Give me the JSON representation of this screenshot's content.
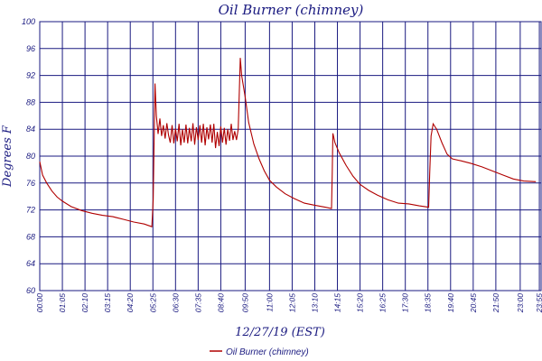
{
  "chart_data": {
    "type": "line",
    "title": "Oil Burner (chimney)",
    "xlabel": "12/27/19 (EST)",
    "ylabel": "Degrees F",
    "ylim": [
      60,
      100
    ],
    "y_ticks": [
      "60",
      "64",
      "68",
      "72",
      "76",
      "80",
      "84",
      "88",
      "92",
      "96",
      "100"
    ],
    "x_ticks": [
      "00:00",
      "01:05",
      "02:10",
      "03:15",
      "04:20",
      "05:25",
      "06:30",
      "07:35",
      "08:40",
      "09:50",
      "11:00",
      "12:05",
      "13:10",
      "14:15",
      "15:20",
      "16:25",
      "17:30",
      "18:35",
      "19:40",
      "20:45",
      "21:50",
      "23:00",
      "23:55"
    ],
    "grid": true,
    "legend_position": "bottom-center",
    "series": [
      {
        "name": "Oil Burner (chimney)",
        "color": "#b00000",
        "points": [
          [
            "00:00",
            79.2
          ],
          [
            "00:08",
            77.2
          ],
          [
            "00:20",
            76.0
          ],
          [
            "00:35",
            74.8
          ],
          [
            "00:50",
            73.9
          ],
          [
            "01:05",
            73.3
          ],
          [
            "01:30",
            72.5
          ],
          [
            "02:00",
            71.9
          ],
          [
            "02:30",
            71.5
          ],
          [
            "03:00",
            71.2
          ],
          [
            "03:30",
            71.0
          ],
          [
            "04:00",
            70.6
          ],
          [
            "04:30",
            70.2
          ],
          [
            "05:00",
            69.9
          ],
          [
            "05:22",
            69.5
          ],
          [
            "05:26",
            73.5
          ],
          [
            "05:29",
            84.0
          ],
          [
            "05:31",
            90.8
          ],
          [
            "05:35",
            86.0
          ],
          [
            "05:40",
            83.3
          ],
          [
            "05:45",
            85.6
          ],
          [
            "05:50",
            83.0
          ],
          [
            "05:55",
            84.6
          ],
          [
            "06:00",
            82.6
          ],
          [
            "06:05",
            84.9
          ],
          [
            "06:10",
            83.1
          ],
          [
            "06:15",
            82.0
          ],
          [
            "06:20",
            84.6
          ],
          [
            "06:25",
            81.9
          ],
          [
            "06:30",
            84.1
          ],
          [
            "06:35",
            82.2
          ],
          [
            "06:40",
            84.8
          ],
          [
            "06:45",
            81.6
          ],
          [
            "06:50",
            84.0
          ],
          [
            "06:55",
            82.0
          ],
          [
            "07:00",
            84.7
          ],
          [
            "07:05",
            81.9
          ],
          [
            "07:10",
            84.2
          ],
          [
            "07:15",
            82.2
          ],
          [
            "07:20",
            84.9
          ],
          [
            "07:25",
            81.7
          ],
          [
            "07:30",
            84.3
          ],
          [
            "07:35",
            82.4
          ],
          [
            "07:40",
            84.6
          ],
          [
            "07:45",
            82.0
          ],
          [
            "07:50",
            84.8
          ],
          [
            "07:55",
            81.6
          ],
          [
            "08:00",
            84.3
          ],
          [
            "08:05",
            82.5
          ],
          [
            "08:10",
            84.7
          ],
          [
            "08:15",
            82.0
          ],
          [
            "08:20",
            84.8
          ],
          [
            "08:25",
            81.2
          ],
          [
            "08:30",
            83.6
          ],
          [
            "08:35",
            81.5
          ],
          [
            "08:40",
            84.4
          ],
          [
            "08:45",
            82.0
          ],
          [
            "08:50",
            84.2
          ],
          [
            "08:55",
            81.7
          ],
          [
            "09:00",
            84.0
          ],
          [
            "09:05",
            82.3
          ],
          [
            "09:10",
            84.8
          ],
          [
            "09:15",
            82.4
          ],
          [
            "09:20",
            83.7
          ],
          [
            "09:25",
            82.4
          ],
          [
            "09:30",
            84.0
          ],
          [
            "09:33",
            89.0
          ],
          [
            "09:36",
            94.6
          ],
          [
            "09:40",
            92.0
          ],
          [
            "09:50",
            88.8
          ],
          [
            "10:00",
            85.0
          ],
          [
            "10:15",
            81.8
          ],
          [
            "10:30",
            79.6
          ],
          [
            "10:45",
            77.8
          ],
          [
            "11:00",
            76.4
          ],
          [
            "11:20",
            75.4
          ],
          [
            "11:45",
            74.4
          ],
          [
            "12:10",
            73.7
          ],
          [
            "12:40",
            73.0
          ],
          [
            "13:10",
            72.7
          ],
          [
            "13:40",
            72.4
          ],
          [
            "13:58",
            72.2
          ],
          [
            "14:00",
            77.5
          ],
          [
            "14:02",
            83.4
          ],
          [
            "14:08",
            82.0
          ],
          [
            "14:20",
            80.5
          ],
          [
            "14:40",
            78.6
          ],
          [
            "15:00",
            77.0
          ],
          [
            "15:20",
            75.8
          ],
          [
            "15:45",
            74.9
          ],
          [
            "16:10",
            74.2
          ],
          [
            "16:40",
            73.5
          ],
          [
            "17:10",
            73.0
          ],
          [
            "17:40",
            72.9
          ],
          [
            "18:10",
            72.6
          ],
          [
            "18:37",
            72.4
          ],
          [
            "18:40",
            77.5
          ],
          [
            "18:44",
            83.0
          ],
          [
            "18:50",
            84.8
          ],
          [
            "19:00",
            84.0
          ],
          [
            "19:15",
            82.0
          ],
          [
            "19:30",
            80.3
          ],
          [
            "19:45",
            79.6
          ],
          [
            "20:10",
            79.3
          ],
          [
            "20:40",
            78.9
          ],
          [
            "21:10",
            78.4
          ],
          [
            "21:40",
            77.8
          ],
          [
            "22:10",
            77.2
          ],
          [
            "22:40",
            76.6
          ],
          [
            "23:10",
            76.3
          ],
          [
            "23:45",
            76.2
          ]
        ]
      }
    ]
  }
}
